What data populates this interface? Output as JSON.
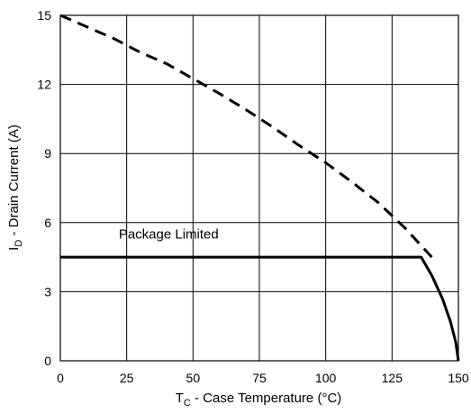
{
  "chart_data": {
    "type": "line",
    "xlabel": {
      "main": "T",
      "sub": "C",
      "rest": " - Case Temperature (°C)"
    },
    "ylabel": {
      "main": "I",
      "sub": "D",
      "rest": " - Drain Current (A)"
    },
    "xlim": [
      0,
      150
    ],
    "ylim": [
      0,
      15
    ],
    "x_ticks": [
      "0",
      "25",
      "50",
      "75",
      "100",
      "125",
      "150"
    ],
    "y_ticks": [
      "0",
      "3",
      "6",
      "9",
      "12",
      "15"
    ],
    "grid": true,
    "series": [
      {
        "style": "dashed",
        "x": [
          0,
          10,
          20,
          30,
          40,
          50,
          60,
          70,
          80,
          90,
          100,
          110,
          120,
          130,
          140
        ],
        "y": [
          15.0,
          14.5,
          14.0,
          13.4,
          12.9,
          12.25,
          11.6,
          10.9,
          10.15,
          9.35,
          8.6,
          7.75,
          6.85,
          5.75,
          4.5
        ]
      },
      {
        "style": "solid",
        "x": [
          0,
          20,
          40,
          60,
          80,
          100,
          120,
          136,
          140,
          144,
          147,
          149,
          150
        ],
        "y": [
          4.5,
          4.5,
          4.5,
          4.5,
          4.5,
          4.5,
          4.5,
          4.5,
          3.7,
          2.7,
          1.7,
          0.8,
          0
        ]
      }
    ],
    "annotations": [
      {
        "text": "Package Limited",
        "x": 22,
        "y": 5.3
      }
    ]
  }
}
